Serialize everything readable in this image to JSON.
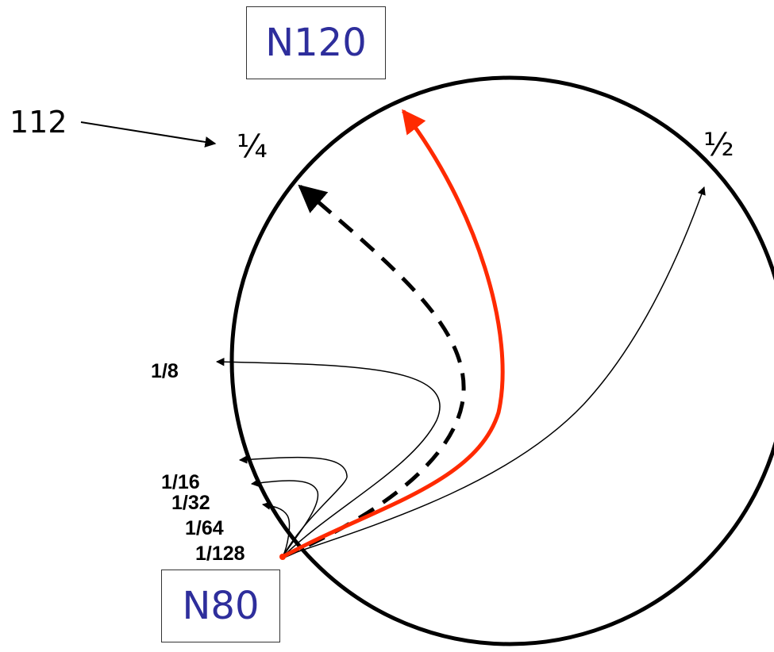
{
  "nodes": {
    "top": "N120",
    "bottom": "N80"
  },
  "pointer_label": "112",
  "ring_labels": {
    "quarter": "¼",
    "half": "½",
    "eighth": "1/8",
    "sixteenth": "1/16",
    "thirty_second": "1/32",
    "sixty_fourth": "1/64",
    "one_twenty_eighth": "1/128"
  },
  "colors": {
    "highlight": "#ff2a00",
    "node_text": "#2e2e9c",
    "stroke": "#000000"
  }
}
